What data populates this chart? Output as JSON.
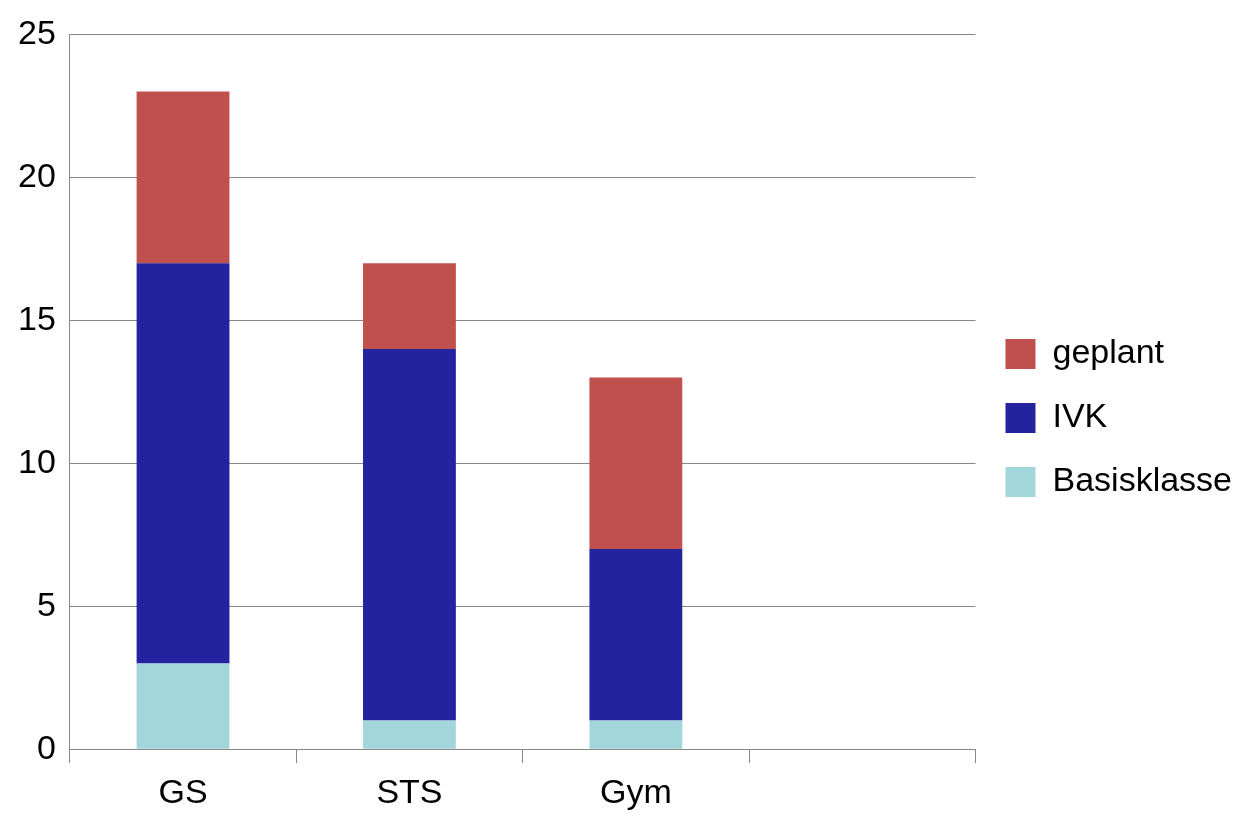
{
  "chart_data": {
    "type": "bar",
    "stacked": true,
    "categories": [
      "GS",
      "STS",
      "Gym",
      null
    ],
    "series": [
      {
        "name": "Basisklasse",
        "color": "#a3d6da",
        "values": [
          3,
          1,
          1,
          null
        ]
      },
      {
        "name": "IVK",
        "color": "#23239f",
        "values": [
          14,
          13,
          6,
          null
        ]
      },
      {
        "name": "geplant",
        "color": "#c0504d",
        "values": [
          6,
          3,
          6,
          null
        ]
      }
    ],
    "ylim": [
      0,
      25
    ],
    "yticks": [
      0,
      5,
      10,
      15,
      20,
      25
    ],
    "grid": "y",
    "legend": "right"
  }
}
